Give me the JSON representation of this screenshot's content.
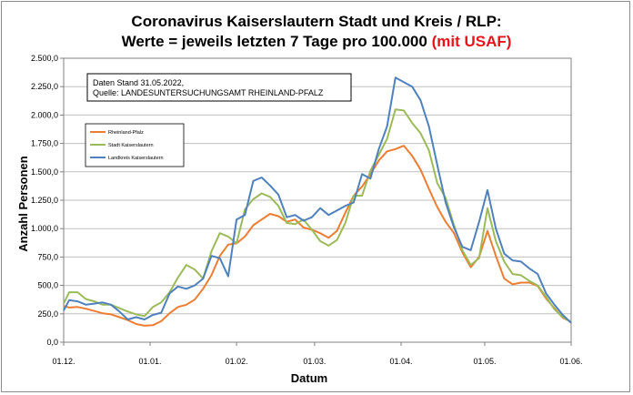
{
  "chart_data": {
    "type": "line",
    "title_line1": "Coronavirus Kaiserslautern Stadt und Kreis / RLP:",
    "title_line2_black": "Werte = jeweils letzten 7 Tage pro 100.000 ",
    "title_line2_red": "(mit USAF)",
    "xlabel": "Datum",
    "ylabel": "Anzahl Personen",
    "ylim": [
      0,
      2500
    ],
    "yticks": [
      0,
      250,
      500,
      750,
      1000,
      1250,
      1500,
      1750,
      2000,
      2250,
      2500
    ],
    "ytick_labels": [
      "0,0",
      "250,0",
      "500,0",
      "750,0",
      "1.000,0",
      "1.250,0",
      "1.500,0",
      "1.750,0",
      "2.000,0",
      "2.250,0",
      "2.500,0"
    ],
    "x_start": "2021-12-01",
    "x_end": "2022-06-01",
    "xtick_dates": [
      "2021-12-01",
      "2022-01-01",
      "2022-02-01",
      "2022-03-01",
      "2022-04-01",
      "2022-05-01",
      "2022-06-01"
    ],
    "xtick_labels": [
      "01.12.",
      "01.01.",
      "01.02.",
      "01.03.",
      "01.04.",
      "01.05.",
      "01.06."
    ],
    "grid": true,
    "annotation_lines": [
      "Daten Stand 31.05.2022,",
      "Quelle: LANDESUNTERSUCHUNGSAMT RHEINLAND-PFALZ"
    ],
    "legend_position": "upper-left",
    "series": [
      {
        "name": "Rheinland-Pfalz",
        "color": "#ed7d31",
        "points": [
          [
            "2021-12-01",
            320
          ],
          [
            "2021-12-03",
            305
          ],
          [
            "2021-12-06",
            310
          ],
          [
            "2021-12-09",
            295
          ],
          [
            "2021-12-12",
            275
          ],
          [
            "2021-12-15",
            255
          ],
          [
            "2021-12-18",
            245
          ],
          [
            "2021-12-21",
            220
          ],
          [
            "2021-12-24",
            195
          ],
          [
            "2021-12-27",
            160
          ],
          [
            "2021-12-30",
            145
          ],
          [
            "2022-01-02",
            150
          ],
          [
            "2022-01-05",
            185
          ],
          [
            "2022-01-08",
            255
          ],
          [
            "2022-01-11",
            310
          ],
          [
            "2022-01-14",
            330
          ],
          [
            "2022-01-17",
            375
          ],
          [
            "2022-01-20",
            470
          ],
          [
            "2022-01-23",
            590
          ],
          [
            "2022-01-26",
            760
          ],
          [
            "2022-01-29",
            860
          ],
          [
            "2022-02-01",
            870
          ],
          [
            "2022-02-04",
            930
          ],
          [
            "2022-02-07",
            1030
          ],
          [
            "2022-02-10",
            1080
          ],
          [
            "2022-02-13",
            1130
          ],
          [
            "2022-02-16",
            1110
          ],
          [
            "2022-02-19",
            1060
          ],
          [
            "2022-02-22",
            1080
          ],
          [
            "2022-02-25",
            1010
          ],
          [
            "2022-02-28",
            990
          ],
          [
            "2022-03-03",
            960
          ],
          [
            "2022-03-06",
            920
          ],
          [
            "2022-03-09",
            980
          ],
          [
            "2022-03-12",
            1140
          ],
          [
            "2022-03-15",
            1290
          ],
          [
            "2022-03-18",
            1370
          ],
          [
            "2022-03-21",
            1480
          ],
          [
            "2022-03-24",
            1600
          ],
          [
            "2022-03-27",
            1680
          ],
          [
            "2022-03-30",
            1700
          ],
          [
            "2022-04-02",
            1730
          ],
          [
            "2022-04-05",
            1640
          ],
          [
            "2022-04-08",
            1520
          ],
          [
            "2022-04-11",
            1350
          ],
          [
            "2022-04-14",
            1190
          ],
          [
            "2022-04-17",
            1060
          ],
          [
            "2022-04-20",
            960
          ],
          [
            "2022-04-23",
            790
          ],
          [
            "2022-04-26",
            660
          ],
          [
            "2022-04-29",
            750
          ],
          [
            "2022-05-02",
            980
          ],
          [
            "2022-05-05",
            760
          ],
          [
            "2022-05-08",
            560
          ],
          [
            "2022-05-11",
            510
          ],
          [
            "2022-05-14",
            525
          ],
          [
            "2022-05-17",
            525
          ],
          [
            "2022-05-20",
            495
          ],
          [
            "2022-05-23",
            385
          ],
          [
            "2022-05-26",
            300
          ],
          [
            "2022-05-29",
            215
          ],
          [
            "2022-06-01",
            180
          ]
        ]
      },
      {
        "name": "Stadt Kaiserslautern",
        "color": "#9bbb59",
        "points": [
          [
            "2021-12-01",
            340
          ],
          [
            "2021-12-03",
            440
          ],
          [
            "2021-12-06",
            440
          ],
          [
            "2021-12-09",
            380
          ],
          [
            "2021-12-12",
            360
          ],
          [
            "2021-12-15",
            330
          ],
          [
            "2021-12-18",
            330
          ],
          [
            "2021-12-21",
            300
          ],
          [
            "2021-12-24",
            270
          ],
          [
            "2021-12-27",
            245
          ],
          [
            "2021-12-30",
            230
          ],
          [
            "2022-01-02",
            310
          ],
          [
            "2022-01-05",
            350
          ],
          [
            "2022-01-08",
            440
          ],
          [
            "2022-01-11",
            570
          ],
          [
            "2022-01-14",
            680
          ],
          [
            "2022-01-17",
            640
          ],
          [
            "2022-01-20",
            560
          ],
          [
            "2022-01-23",
            800
          ],
          [
            "2022-01-26",
            960
          ],
          [
            "2022-01-29",
            930
          ],
          [
            "2022-02-01",
            870
          ],
          [
            "2022-02-04",
            1170
          ],
          [
            "2022-02-07",
            1260
          ],
          [
            "2022-02-10",
            1310
          ],
          [
            "2022-02-13",
            1280
          ],
          [
            "2022-02-16",
            1200
          ],
          [
            "2022-02-19",
            1050
          ],
          [
            "2022-02-22",
            1040
          ],
          [
            "2022-02-25",
            1080
          ],
          [
            "2022-02-28",
            990
          ],
          [
            "2022-03-03",
            890
          ],
          [
            "2022-03-06",
            850
          ],
          [
            "2022-03-09",
            900
          ],
          [
            "2022-03-12",
            1050
          ],
          [
            "2022-03-15",
            1290
          ],
          [
            "2022-03-18",
            1290
          ],
          [
            "2022-03-21",
            1510
          ],
          [
            "2022-03-24",
            1650
          ],
          [
            "2022-03-27",
            1790
          ],
          [
            "2022-03-30",
            2050
          ],
          [
            "2022-04-02",
            2040
          ],
          [
            "2022-04-05",
            1930
          ],
          [
            "2022-04-08",
            1840
          ],
          [
            "2022-04-11",
            1690
          ],
          [
            "2022-04-14",
            1400
          ],
          [
            "2022-04-17",
            1270
          ],
          [
            "2022-04-20",
            1030
          ],
          [
            "2022-04-23",
            810
          ],
          [
            "2022-04-26",
            680
          ],
          [
            "2022-04-29",
            740
          ],
          [
            "2022-05-02",
            1180
          ],
          [
            "2022-05-05",
            890
          ],
          [
            "2022-05-08",
            710
          ],
          [
            "2022-05-11",
            600
          ],
          [
            "2022-05-14",
            590
          ],
          [
            "2022-05-17",
            540
          ],
          [
            "2022-05-20",
            500
          ],
          [
            "2022-05-23",
            400
          ],
          [
            "2022-05-26",
            290
          ],
          [
            "2022-05-29",
            220
          ],
          [
            "2022-06-01",
            180
          ]
        ]
      },
      {
        "name": "Landkreis Kaiserslautern",
        "color": "#4f81bd",
        "points": [
          [
            "2021-12-01",
            280
          ],
          [
            "2021-12-03",
            370
          ],
          [
            "2021-12-06",
            360
          ],
          [
            "2021-12-09",
            330
          ],
          [
            "2021-12-12",
            340
          ],
          [
            "2021-12-15",
            350
          ],
          [
            "2021-12-18",
            330
          ],
          [
            "2021-12-21",
            270
          ],
          [
            "2021-12-24",
            200
          ],
          [
            "2021-12-27",
            220
          ],
          [
            "2021-12-30",
            200
          ],
          [
            "2022-01-02",
            240
          ],
          [
            "2022-01-05",
            260
          ],
          [
            "2022-01-08",
            430
          ],
          [
            "2022-01-11",
            490
          ],
          [
            "2022-01-14",
            470
          ],
          [
            "2022-01-17",
            500
          ],
          [
            "2022-01-20",
            560
          ],
          [
            "2022-01-23",
            760
          ],
          [
            "2022-01-26",
            740
          ],
          [
            "2022-01-29",
            580
          ],
          [
            "2022-02-01",
            1080
          ],
          [
            "2022-02-04",
            1120
          ],
          [
            "2022-02-07",
            1420
          ],
          [
            "2022-02-10",
            1450
          ],
          [
            "2022-02-13",
            1380
          ],
          [
            "2022-02-16",
            1300
          ],
          [
            "2022-02-19",
            1100
          ],
          [
            "2022-02-22",
            1120
          ],
          [
            "2022-02-25",
            1070
          ],
          [
            "2022-02-28",
            1100
          ],
          [
            "2022-03-03",
            1180
          ],
          [
            "2022-03-06",
            1120
          ],
          [
            "2022-03-09",
            1160
          ],
          [
            "2022-03-12",
            1200
          ],
          [
            "2022-03-15",
            1230
          ],
          [
            "2022-03-18",
            1480
          ],
          [
            "2022-03-21",
            1440
          ],
          [
            "2022-03-24",
            1700
          ],
          [
            "2022-03-27",
            1900
          ],
          [
            "2022-03-30",
            2330
          ],
          [
            "2022-04-02",
            2290
          ],
          [
            "2022-04-05",
            2250
          ],
          [
            "2022-04-08",
            2130
          ],
          [
            "2022-04-11",
            1900
          ],
          [
            "2022-04-14",
            1560
          ],
          [
            "2022-04-17",
            1230
          ],
          [
            "2022-04-20",
            1010
          ],
          [
            "2022-04-23",
            840
          ],
          [
            "2022-04-26",
            810
          ],
          [
            "2022-04-29",
            1060
          ],
          [
            "2022-05-02",
            1340
          ],
          [
            "2022-05-05",
            1000
          ],
          [
            "2022-05-08",
            780
          ],
          [
            "2022-05-11",
            720
          ],
          [
            "2022-05-14",
            710
          ],
          [
            "2022-05-17",
            650
          ],
          [
            "2022-05-20",
            600
          ],
          [
            "2022-05-23",
            430
          ],
          [
            "2022-05-26",
            330
          ],
          [
            "2022-05-29",
            240
          ],
          [
            "2022-06-01",
            170
          ]
        ]
      }
    ]
  }
}
